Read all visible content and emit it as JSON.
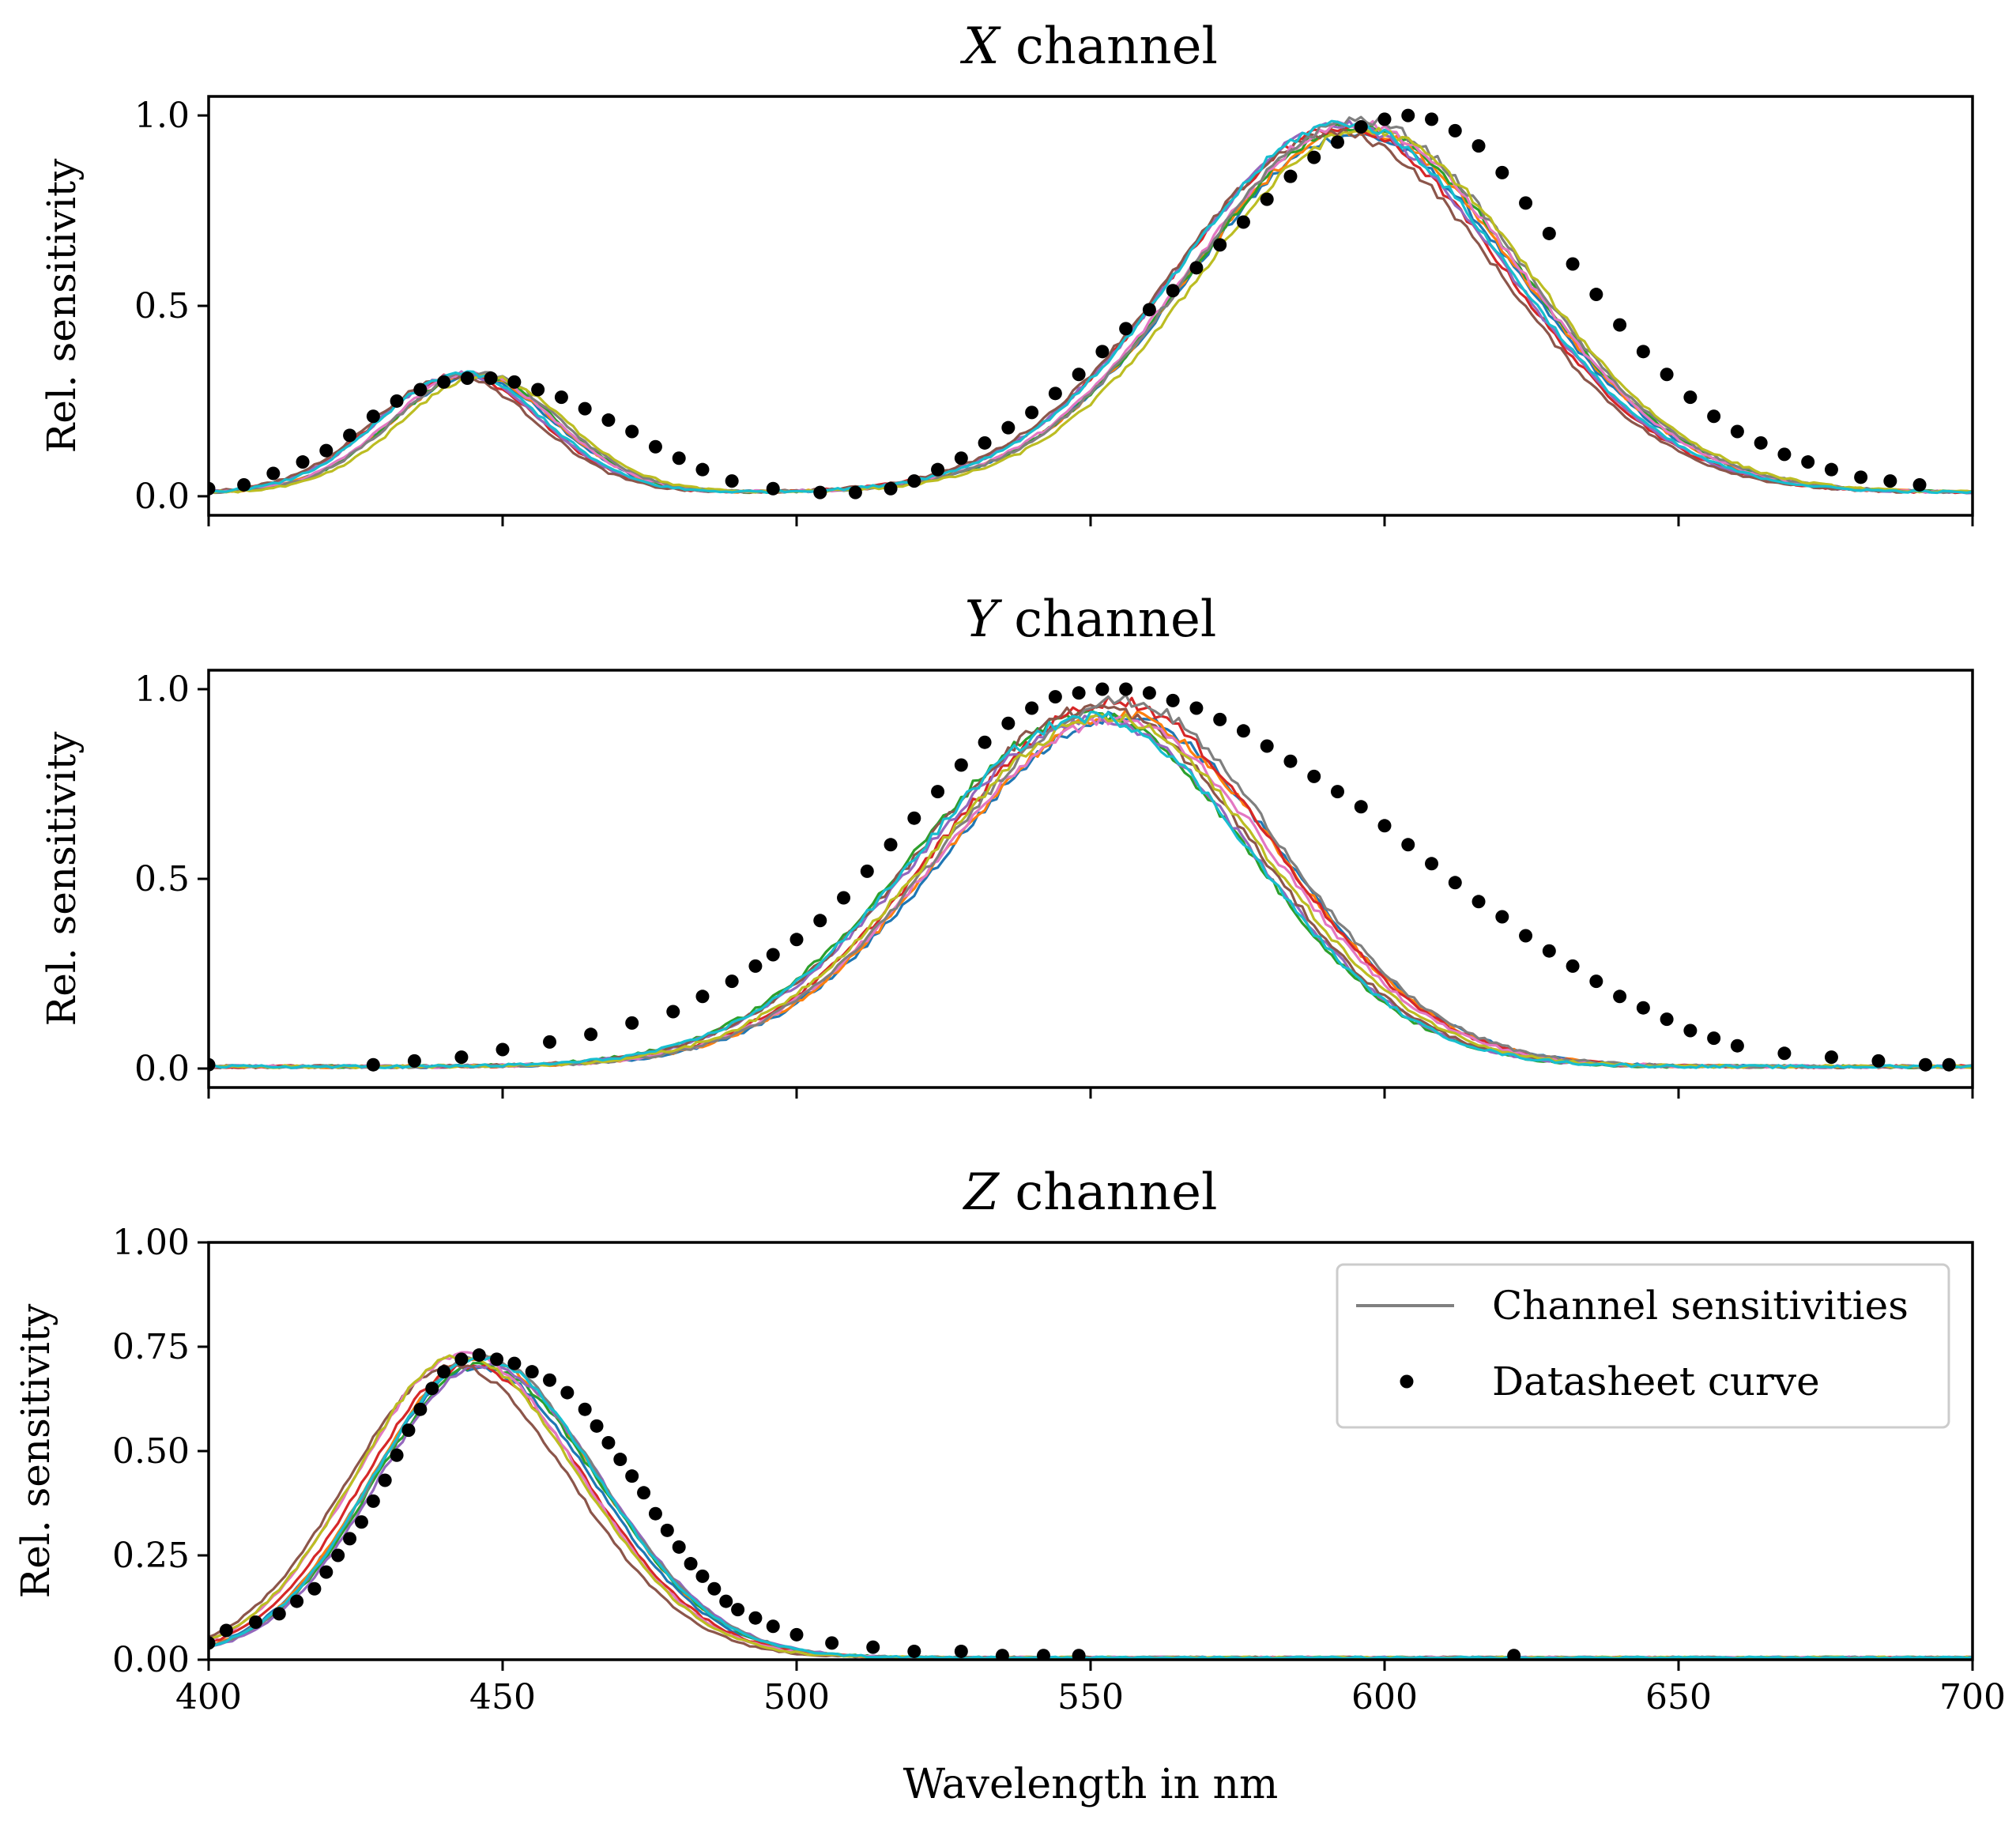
{
  "figure": {
    "xlabel": "Wavelength in nm",
    "legend": {
      "location": "top-right of Z panel",
      "entries": [
        {
          "label": "Channel sensitivities",
          "marker": "line",
          "color": "#808080"
        },
        {
          "label": "Datasheet curve",
          "marker": "dot",
          "color": "#000000"
        }
      ]
    },
    "palette": [
      "#1f77b4",
      "#ff7f0e",
      "#2ca02c",
      "#d62728",
      "#9467bd",
      "#8c564b",
      "#e377c2",
      "#7f7f7f",
      "#bcbd22",
      "#17becf"
    ]
  },
  "chart_data": [
    {
      "type": "line",
      "title_italic": "X",
      "title_rest": " channel",
      "xlabel": "",
      "ylabel": "Rel. sensitivity",
      "xlim": [
        400,
        700
      ],
      "ylim": [
        -0.05,
        1.05
      ],
      "xticks": [
        400,
        450,
        500,
        550,
        600,
        650,
        700
      ],
      "xticklabels_shown": false,
      "yticks": [
        0.0,
        0.5,
        1.0
      ],
      "yticklabels": [
        "0.0",
        "0.5",
        "1.0"
      ],
      "series_count": 10,
      "datasheet": {
        "name": "Datasheet curve",
        "x": [
          400,
          406,
          411,
          416,
          420,
          424,
          428,
          432,
          436,
          440,
          444,
          448,
          452,
          456,
          460,
          464,
          468,
          472,
          476,
          480,
          484,
          489,
          496,
          504,
          510,
          516,
          520,
          524,
          528,
          532,
          536,
          540,
          544,
          548,
          552,
          556,
          560,
          564,
          568,
          572,
          576,
          580,
          584,
          588,
          592,
          596,
          600,
          604,
          608,
          612,
          616,
          620,
          624,
          628,
          632,
          636,
          640,
          644,
          648,
          652,
          656,
          660,
          664,
          668,
          672,
          676,
          681,
          686,
          691
        ],
        "y": [
          0.02,
          0.03,
          0.06,
          0.09,
          0.12,
          0.16,
          0.21,
          0.25,
          0.28,
          0.3,
          0.31,
          0.31,
          0.3,
          0.28,
          0.26,
          0.23,
          0.2,
          0.17,
          0.13,
          0.1,
          0.07,
          0.04,
          0.02,
          0.01,
          0.01,
          0.02,
          0.04,
          0.07,
          0.1,
          0.14,
          0.18,
          0.22,
          0.27,
          0.32,
          0.38,
          0.44,
          0.49,
          0.54,
          0.6,
          0.66,
          0.72,
          0.78,
          0.84,
          0.89,
          0.93,
          0.97,
          0.99,
          1.0,
          0.99,
          0.96,
          0.92,
          0.85,
          0.77,
          0.69,
          0.61,
          0.53,
          0.45,
          0.38,
          0.32,
          0.26,
          0.21,
          0.17,
          0.14,
          0.11,
          0.09,
          0.07,
          0.05,
          0.04,
          0.03
        ]
      },
      "measured_shape": {
        "lobes": [
          {
            "center": 444,
            "sigma": 14,
            "amp": 0.31
          },
          {
            "center": 594,
            "sigma": 28,
            "amp": 0.96
          }
        ],
        "baseline": 0.01,
        "noise": 0.02
      }
    },
    {
      "type": "line",
      "title_italic": "Y",
      "title_rest": " channel",
      "xlabel": "",
      "ylabel": "Rel. sensitivity",
      "xlim": [
        400,
        700
      ],
      "ylim": [
        -0.05,
        1.05
      ],
      "xticks": [
        400,
        450,
        500,
        550,
        600,
        650,
        700
      ],
      "xticklabels_shown": false,
      "yticks": [
        0.0,
        0.5,
        1.0
      ],
      "yticklabels": [
        "0.0",
        "0.5",
        "1.0"
      ],
      "series_count": 10,
      "datasheet": {
        "name": "Datasheet curve",
        "x": [
          400,
          428,
          435,
          443,
          450,
          458,
          465,
          472,
          479,
          484,
          489,
          493,
          496,
          500,
          504,
          508,
          512,
          516,
          520,
          524,
          528,
          532,
          536,
          540,
          544,
          548,
          552,
          556,
          560,
          564,
          568,
          572,
          576,
          580,
          584,
          588,
          592,
          596,
          600,
          604,
          608,
          612,
          616,
          620,
          624,
          628,
          632,
          636,
          640,
          644,
          648,
          652,
          656,
          660,
          668,
          676,
          684,
          692,
          696
        ],
        "y": [
          0.01,
          0.01,
          0.02,
          0.03,
          0.05,
          0.07,
          0.09,
          0.12,
          0.15,
          0.19,
          0.23,
          0.27,
          0.3,
          0.34,
          0.39,
          0.45,
          0.52,
          0.59,
          0.66,
          0.73,
          0.8,
          0.86,
          0.91,
          0.95,
          0.98,
          0.99,
          1.0,
          1.0,
          0.99,
          0.97,
          0.95,
          0.92,
          0.89,
          0.85,
          0.81,
          0.77,
          0.73,
          0.69,
          0.64,
          0.59,
          0.54,
          0.49,
          0.44,
          0.4,
          0.35,
          0.31,
          0.27,
          0.23,
          0.19,
          0.16,
          0.13,
          0.1,
          0.08,
          0.06,
          0.04,
          0.03,
          0.02,
          0.01,
          0.01
        ]
      },
      "measured_shape": {
        "lobes": [
          {
            "center": 553,
            "sigma": 30,
            "amp": 0.95,
            "sigma_right": 27
          }
        ],
        "baseline": 0.005,
        "noise": 0.025
      }
    },
    {
      "type": "line",
      "title_italic": "Z",
      "title_rest": " channel",
      "xlabel": "Wavelength in nm",
      "ylabel": "Rel. sensitivity",
      "xlim": [
        400,
        700
      ],
      "ylim": [
        0.0,
        1.0
      ],
      "xticks": [
        400,
        450,
        500,
        550,
        600,
        650,
        700
      ],
      "xticklabels_shown": true,
      "xticklabels": [
        "400",
        "450",
        "500",
        "550",
        "600",
        "650",
        "700"
      ],
      "yticks": [
        0.0,
        0.25,
        0.5,
        0.75,
        1.0
      ],
      "yticklabels": [
        "0.00",
        "0.25",
        "0.50",
        "0.75",
        "1.00"
      ],
      "series_count": 10,
      "datasheet": {
        "name": "Datasheet curve",
        "x": [
          400,
          403,
          408,
          412,
          415,
          418,
          420,
          422,
          424,
          426,
          428,
          430,
          432,
          434,
          436,
          438,
          440,
          443,
          446,
          449,
          452,
          455,
          458,
          461,
          464,
          466,
          468,
          470,
          472,
          474,
          476,
          478,
          480,
          482,
          484,
          486,
          488,
          490,
          493,
          496,
          500,
          506,
          513,
          520,
          528,
          535,
          542,
          548,
          622
        ],
        "y": [
          0.04,
          0.07,
          0.09,
          0.11,
          0.14,
          0.17,
          0.21,
          0.25,
          0.29,
          0.33,
          0.38,
          0.43,
          0.49,
          0.55,
          0.6,
          0.65,
          0.69,
          0.72,
          0.73,
          0.72,
          0.71,
          0.69,
          0.67,
          0.64,
          0.6,
          0.56,
          0.52,
          0.48,
          0.44,
          0.4,
          0.35,
          0.31,
          0.27,
          0.23,
          0.2,
          0.17,
          0.14,
          0.12,
          0.1,
          0.08,
          0.06,
          0.04,
          0.03,
          0.02,
          0.02,
          0.01,
          0.01,
          0.01,
          0.01
        ]
      },
      "measured_shape": {
        "lobes": [
          {
            "center": 444,
            "sigma": 18,
            "amp": 0.72,
            "sigma_right": 20
          }
        ],
        "baseline": 0.005,
        "noise": 0.015
      }
    }
  ]
}
